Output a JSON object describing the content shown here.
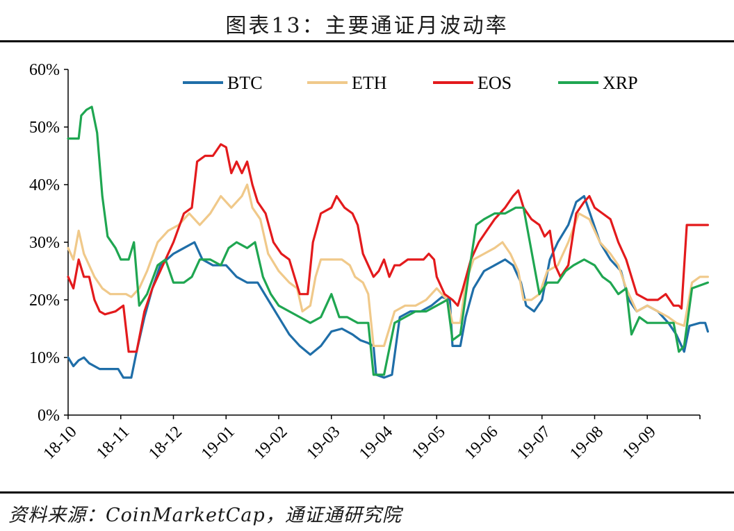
{
  "title": "图表13：主要通证月波动率",
  "source": "资料来源：CoinMarketCap，通证通研究院",
  "chart_data": {
    "type": "line",
    "ylim": [
      0,
      60
    ],
    "yticks": [
      "0%",
      "10%",
      "20%",
      "30%",
      "40%",
      "50%",
      "60%"
    ],
    "xticks": [
      "18-10",
      "18-11",
      "18-12",
      "19-01",
      "19-02",
      "19-03",
      "19-04",
      "19-05",
      "19-06",
      "19-07",
      "19-08",
      "19-09"
    ],
    "legend_position": "top",
    "series": [
      {
        "name": "BTC",
        "color": "#1f6ea8",
        "points": [
          [
            0,
            10
          ],
          [
            0.1,
            8.5
          ],
          [
            0.2,
            9.5
          ],
          [
            0.3,
            10
          ],
          [
            0.4,
            9
          ],
          [
            0.6,
            8
          ],
          [
            0.8,
            8
          ],
          [
            0.95,
            8
          ],
          [
            1.05,
            6.5
          ],
          [
            1.2,
            6.5
          ],
          [
            1.3,
            11
          ],
          [
            1.45,
            17
          ],
          [
            1.6,
            22
          ],
          [
            1.75,
            26
          ],
          [
            2.0,
            28
          ],
          [
            2.2,
            29
          ],
          [
            2.4,
            30
          ],
          [
            2.55,
            27
          ],
          [
            2.75,
            26
          ],
          [
            3.0,
            26
          ],
          [
            3.2,
            24
          ],
          [
            3.4,
            23
          ],
          [
            3.6,
            23
          ],
          [
            3.8,
            20
          ],
          [
            4.0,
            17
          ],
          [
            4.2,
            14
          ],
          [
            4.4,
            12
          ],
          [
            4.6,
            10.5
          ],
          [
            4.8,
            12
          ],
          [
            5.0,
            14.5
          ],
          [
            5.2,
            15
          ],
          [
            5.4,
            14
          ],
          [
            5.55,
            13
          ],
          [
            5.7,
            12.5
          ],
          [
            5.8,
            12
          ],
          [
            5.85,
            7
          ],
          [
            6.0,
            6.5
          ],
          [
            6.15,
            7
          ],
          [
            6.3,
            17
          ],
          [
            6.5,
            18
          ],
          [
            6.7,
            18
          ],
          [
            6.9,
            19
          ],
          [
            7.1,
            20.5
          ],
          [
            7.25,
            20
          ],
          [
            7.3,
            12
          ],
          [
            7.45,
            12
          ],
          [
            7.55,
            17
          ],
          [
            7.7,
            22
          ],
          [
            7.9,
            25
          ],
          [
            8.1,
            26
          ],
          [
            8.3,
            27
          ],
          [
            8.45,
            26
          ],
          [
            8.6,
            23
          ],
          [
            8.7,
            19
          ],
          [
            8.85,
            18
          ],
          [
            9.0,
            20
          ],
          [
            9.15,
            27
          ],
          [
            9.3,
            30
          ],
          [
            9.5,
            33
          ],
          [
            9.65,
            37
          ],
          [
            9.8,
            38
          ],
          [
            9.95,
            34
          ],
          [
            10.1,
            30
          ],
          [
            10.3,
            27
          ],
          [
            10.5,
            25
          ],
          [
            10.65,
            20
          ],
          [
            10.8,
            18
          ],
          [
            11.0,
            19
          ],
          [
            11.2,
            18
          ],
          [
            11.4,
            16
          ],
          [
            11.55,
            14
          ],
          [
            11.7,
            11
          ],
          [
            11.8,
            15.5
          ],
          [
            12.0,
            16
          ],
          [
            12.1,
            16
          ],
          [
            12.15,
            14.5
          ]
        ]
      },
      {
        "name": "ETH",
        "color": "#f0c98a",
        "points": [
          [
            0,
            29
          ],
          [
            0.1,
            27
          ],
          [
            0.2,
            32
          ],
          [
            0.3,
            28
          ],
          [
            0.4,
            26
          ],
          [
            0.5,
            24
          ],
          [
            0.65,
            22
          ],
          [
            0.8,
            21
          ],
          [
            0.95,
            21
          ],
          [
            1.1,
            21
          ],
          [
            1.2,
            20.5
          ],
          [
            1.35,
            22
          ],
          [
            1.5,
            25
          ],
          [
            1.7,
            30
          ],
          [
            1.9,
            32
          ],
          [
            2.1,
            33
          ],
          [
            2.3,
            35
          ],
          [
            2.5,
            33
          ],
          [
            2.7,
            35
          ],
          [
            2.9,
            38
          ],
          [
            3.1,
            36
          ],
          [
            3.3,
            38
          ],
          [
            3.4,
            40
          ],
          [
            3.5,
            36
          ],
          [
            3.65,
            34
          ],
          [
            3.8,
            28
          ],
          [
            4.0,
            25
          ],
          [
            4.2,
            23
          ],
          [
            4.35,
            22
          ],
          [
            4.45,
            18
          ],
          [
            4.6,
            19
          ],
          [
            4.7,
            24
          ],
          [
            4.8,
            27
          ],
          [
            5.0,
            27
          ],
          [
            5.2,
            27
          ],
          [
            5.35,
            26
          ],
          [
            5.45,
            24
          ],
          [
            5.6,
            23
          ],
          [
            5.7,
            21
          ],
          [
            5.8,
            12
          ],
          [
            6.0,
            12
          ],
          [
            6.2,
            18
          ],
          [
            6.4,
            19
          ],
          [
            6.6,
            19
          ],
          [
            6.8,
            20
          ],
          [
            7.0,
            22
          ],
          [
            7.2,
            20
          ],
          [
            7.3,
            16
          ],
          [
            7.45,
            16
          ],
          [
            7.55,
            23
          ],
          [
            7.7,
            27
          ],
          [
            7.9,
            28
          ],
          [
            8.1,
            29
          ],
          [
            8.25,
            30
          ],
          [
            8.4,
            28
          ],
          [
            8.55,
            25
          ],
          [
            8.65,
            20
          ],
          [
            8.8,
            20
          ],
          [
            8.95,
            21
          ],
          [
            9.1,
            25
          ],
          [
            9.3,
            26
          ],
          [
            9.5,
            30
          ],
          [
            9.7,
            35
          ],
          [
            9.9,
            34
          ],
          [
            10.1,
            30
          ],
          [
            10.3,
            28
          ],
          [
            10.45,
            26
          ],
          [
            10.6,
            22
          ],
          [
            10.8,
            18
          ],
          [
            11.0,
            19
          ],
          [
            11.2,
            18
          ],
          [
            11.4,
            17
          ],
          [
            11.55,
            16
          ],
          [
            11.7,
            15.5
          ],
          [
            11.85,
            23
          ],
          [
            12.0,
            24
          ],
          [
            12.15,
            24
          ]
        ]
      },
      {
        "name": "EOS",
        "color": "#e31a1c",
        "points": [
          [
            0,
            24
          ],
          [
            0.1,
            22
          ],
          [
            0.2,
            27
          ],
          [
            0.3,
            24
          ],
          [
            0.4,
            24
          ],
          [
            0.5,
            20
          ],
          [
            0.6,
            18
          ],
          [
            0.7,
            17.5
          ],
          [
            0.9,
            18
          ],
          [
            1.05,
            19
          ],
          [
            1.15,
            11
          ],
          [
            1.3,
            11
          ],
          [
            1.45,
            18
          ],
          [
            1.6,
            22
          ],
          [
            1.8,
            26
          ],
          [
            2.0,
            30
          ],
          [
            2.2,
            35
          ],
          [
            2.35,
            36
          ],
          [
            2.45,
            44
          ],
          [
            2.6,
            45
          ],
          [
            2.75,
            45
          ],
          [
            2.9,
            47
          ],
          [
            3.0,
            46.5
          ],
          [
            3.1,
            42
          ],
          [
            3.2,
            44
          ],
          [
            3.3,
            42
          ],
          [
            3.4,
            44
          ],
          [
            3.5,
            40
          ],
          [
            3.6,
            37
          ],
          [
            3.75,
            35
          ],
          [
            3.9,
            30
          ],
          [
            4.05,
            28
          ],
          [
            4.2,
            27
          ],
          [
            4.3,
            24
          ],
          [
            4.4,
            21
          ],
          [
            4.55,
            21
          ],
          [
            4.65,
            30
          ],
          [
            4.8,
            35
          ],
          [
            5.0,
            36
          ],
          [
            5.1,
            38
          ],
          [
            5.25,
            36
          ],
          [
            5.4,
            35
          ],
          [
            5.5,
            33
          ],
          [
            5.6,
            28
          ],
          [
            5.7,
            26
          ],
          [
            5.8,
            24
          ],
          [
            5.9,
            25
          ],
          [
            6.0,
            27
          ],
          [
            6.1,
            24
          ],
          [
            6.2,
            26
          ],
          [
            6.3,
            26
          ],
          [
            6.45,
            27
          ],
          [
            6.6,
            27
          ],
          [
            6.75,
            27
          ],
          [
            6.85,
            28
          ],
          [
            6.95,
            27
          ],
          [
            7.0,
            24
          ],
          [
            7.15,
            21
          ],
          [
            7.3,
            20
          ],
          [
            7.4,
            19
          ],
          [
            7.5,
            22
          ],
          [
            7.65,
            27
          ],
          [
            7.8,
            30
          ],
          [
            7.95,
            32
          ],
          [
            8.1,
            34
          ],
          [
            8.3,
            36
          ],
          [
            8.45,
            38
          ],
          [
            8.55,
            39
          ],
          [
            8.65,
            36
          ],
          [
            8.8,
            34
          ],
          [
            8.95,
            33
          ],
          [
            9.05,
            31
          ],
          [
            9.15,
            32
          ],
          [
            9.25,
            26
          ],
          [
            9.35,
            24
          ],
          [
            9.5,
            26
          ],
          [
            9.65,
            35
          ],
          [
            9.8,
            37
          ],
          [
            9.9,
            38
          ],
          [
            10.0,
            36
          ],
          [
            10.15,
            35
          ],
          [
            10.3,
            34
          ],
          [
            10.45,
            30
          ],
          [
            10.6,
            27
          ],
          [
            10.8,
            21
          ],
          [
            11.0,
            20
          ],
          [
            11.2,
            20
          ],
          [
            11.35,
            21
          ],
          [
            11.5,
            19
          ],
          [
            11.6,
            19
          ],
          [
            11.65,
            18.5
          ],
          [
            11.75,
            33
          ],
          [
            11.85,
            33
          ],
          [
            12.0,
            33
          ],
          [
            12.15,
            33
          ]
        ]
      },
      {
        "name": "XRP",
        "color": "#1fa651",
        "points": [
          [
            0,
            48
          ],
          [
            0.1,
            48
          ],
          [
            0.2,
            48
          ],
          [
            0.25,
            52
          ],
          [
            0.35,
            53
          ],
          [
            0.45,
            53.5
          ],
          [
            0.55,
            49
          ],
          [
            0.65,
            38
          ],
          [
            0.75,
            31
          ],
          [
            0.9,
            29
          ],
          [
            1.0,
            27
          ],
          [
            1.15,
            27
          ],
          [
            1.25,
            30
          ],
          [
            1.35,
            19
          ],
          [
            1.5,
            21
          ],
          [
            1.7,
            26
          ],
          [
            1.85,
            27
          ],
          [
            2.0,
            23
          ],
          [
            2.2,
            23
          ],
          [
            2.35,
            24
          ],
          [
            2.5,
            27
          ],
          [
            2.7,
            27
          ],
          [
            2.9,
            26
          ],
          [
            3.05,
            29
          ],
          [
            3.2,
            30
          ],
          [
            3.4,
            29
          ],
          [
            3.55,
            30
          ],
          [
            3.7,
            24
          ],
          [
            3.85,
            21
          ],
          [
            4.0,
            19
          ],
          [
            4.2,
            18
          ],
          [
            4.4,
            17
          ],
          [
            4.6,
            16
          ],
          [
            4.8,
            17
          ],
          [
            5.0,
            21
          ],
          [
            5.15,
            17
          ],
          [
            5.3,
            17
          ],
          [
            5.5,
            16
          ],
          [
            5.7,
            16
          ],
          [
            5.8,
            7
          ],
          [
            6.0,
            7
          ],
          [
            6.2,
            16
          ],
          [
            6.4,
            17
          ],
          [
            6.6,
            18
          ],
          [
            6.8,
            18
          ],
          [
            7.0,
            19
          ],
          [
            7.2,
            20
          ],
          [
            7.3,
            13
          ],
          [
            7.45,
            14
          ],
          [
            7.6,
            24
          ],
          [
            7.75,
            33
          ],
          [
            7.9,
            34
          ],
          [
            8.1,
            35
          ],
          [
            8.3,
            35
          ],
          [
            8.5,
            36
          ],
          [
            8.65,
            36
          ],
          [
            8.75,
            31
          ],
          [
            8.85,
            26
          ],
          [
            8.95,
            21
          ],
          [
            9.1,
            23
          ],
          [
            9.3,
            23
          ],
          [
            9.45,
            25
          ],
          [
            9.6,
            26
          ],
          [
            9.8,
            27
          ],
          [
            10.0,
            26
          ],
          [
            10.15,
            24
          ],
          [
            10.3,
            23
          ],
          [
            10.45,
            21
          ],
          [
            10.6,
            22
          ],
          [
            10.7,
            14
          ],
          [
            10.85,
            17
          ],
          [
            11.0,
            16
          ],
          [
            11.3,
            16
          ],
          [
            11.5,
            16
          ],
          [
            11.6,
            11
          ],
          [
            11.7,
            12
          ],
          [
            11.85,
            22
          ],
          [
            12.0,
            22.5
          ],
          [
            12.15,
            23
          ]
        ]
      }
    ]
  }
}
